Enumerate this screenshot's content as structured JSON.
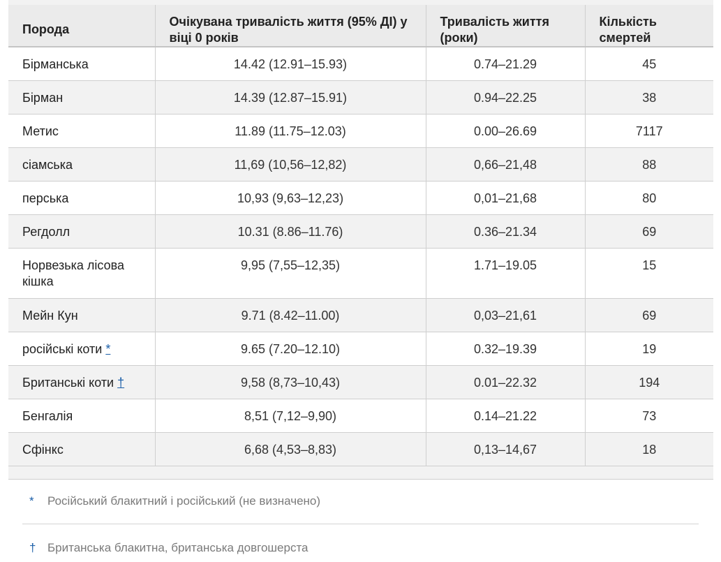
{
  "table": {
    "headers": [
      "Порода",
      "Очікувана тривалість життя (95% ДІ) у віці 0 років",
      "Тривалість життя (роки)",
      "Кількість смертей"
    ],
    "rows": [
      {
        "breed": "Бірманська",
        "marker": "",
        "expectancy": "14.42 (12.91–15.93)",
        "range": "0.74–21.29",
        "deaths": "45"
      },
      {
        "breed": "Бірман",
        "marker": "",
        "expectancy": "14.39 (12.87–15.91)",
        "range": "0.94–22.25",
        "deaths": "38"
      },
      {
        "breed": "Метис",
        "marker": "",
        "expectancy": "11.89 (11.75–12.03)",
        "range": "0.00–26.69",
        "deaths": "7117"
      },
      {
        "breed": "сіамська",
        "marker": "",
        "expectancy": "11,69 (10,56–12,82)",
        "range": "0,66–21,48",
        "deaths": "88"
      },
      {
        "breed": "перська",
        "marker": "",
        "expectancy": "10,93 (9,63–12,23)",
        "range": "0,01–21,68",
        "deaths": "80"
      },
      {
        "breed": "Регдолл",
        "marker": "",
        "expectancy": "10.31 (8.86–11.76)",
        "range": "0.36–21.34",
        "deaths": "69"
      },
      {
        "breed": "Норвезька лісова кішка",
        "marker": "",
        "expectancy": "9,95 (7,55–12,35)",
        "range": "1.71–19.05",
        "deaths": "15"
      },
      {
        "breed": "Мейн Кун",
        "marker": "",
        "expectancy": "9.71 (8.42–11.00)",
        "range": "0,03–21,61",
        "deaths": "69"
      },
      {
        "breed": "російські коти",
        "marker": "*",
        "expectancy": "9.65 (7.20–12.10)",
        "range": "0.32–19.39",
        "deaths": "19"
      },
      {
        "breed": "Британські коти",
        "marker": "†",
        "expectancy": "9,58 (8,73–10,43)",
        "range": "0.01–22.32",
        "deaths": "194"
      },
      {
        "breed": "Бенгалія",
        "marker": "",
        "expectancy": "8,51 (7,12–9,90)",
        "range": "0.14–21.22",
        "deaths": "73"
      },
      {
        "breed": "Сфінкс",
        "marker": "",
        "expectancy": "6,68 (4,53–8,83)",
        "range": "0,13–14,67",
        "deaths": "18"
      }
    ]
  },
  "footnotes": [
    {
      "symbol": "*",
      "text": "Російський блакитний і російський (не визначено)"
    },
    {
      "symbol": "†",
      "text": "Британська блакитна, британська довгошерста"
    }
  ],
  "colors": {
    "header_bg": "#ebebeb",
    "row_alt_bg": "#f2f2f2",
    "link": "#1a5ea8",
    "footnote_text": "#7a7a7a"
  }
}
